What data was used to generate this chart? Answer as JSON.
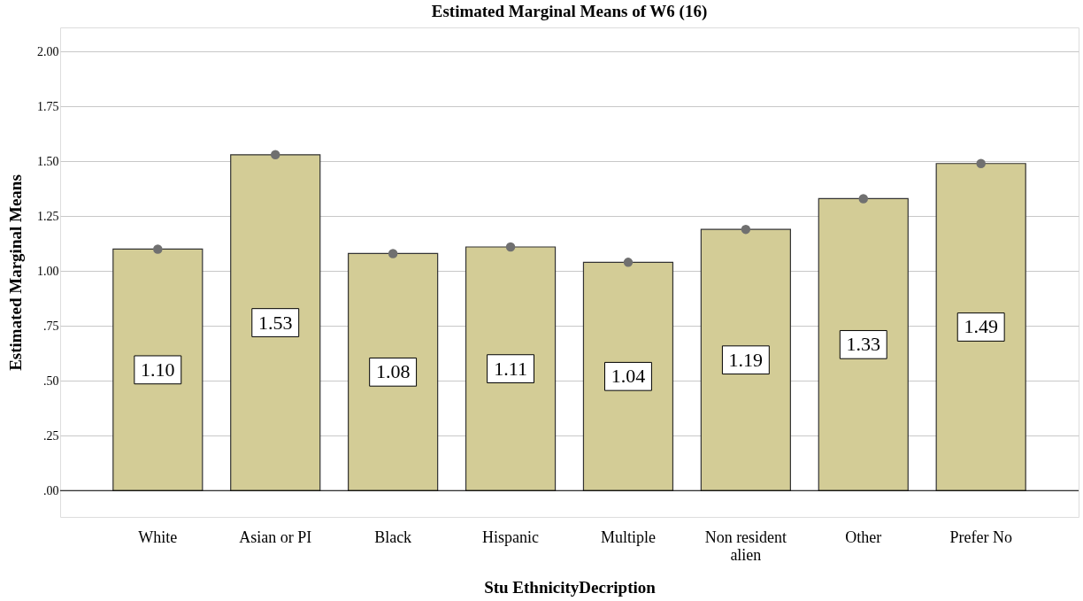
{
  "chart_data": {
    "type": "bar",
    "title": "Estimated Marginal Means of W6 (16)",
    "xlabel": "Stu EthnicityDecription",
    "ylabel": "Estimated Marginal Means",
    "categories": [
      "White",
      "Asian or PI",
      "Black",
      "Hispanic",
      "Multiple",
      "Non resident alien",
      "Other",
      "Prefer No"
    ],
    "series": [
      {
        "color": "#d3cc96",
        "values": [
          1.1,
          1.53,
          1.08,
          1.11,
          1.04,
          1.19,
          1.33,
          1.49
        ],
        "value_labels": [
          "1.10",
          "1.53",
          "1.08",
          "1.11",
          "1.04",
          "1.19",
          "1.33",
          "1.49"
        ]
      },
      {
        "type": "scatter",
        "color": "#707070",
        "values": [
          1.1,
          1.53,
          1.08,
          1.11,
          1.04,
          1.19,
          1.33,
          1.49
        ]
      }
    ],
    "ylim": [
      -0.12,
      2.11
    ],
    "yticks": [
      {
        "value": 0,
        "label": ".00"
      },
      {
        "value": 0.25,
        "label": ".25"
      },
      {
        "value": 0.5,
        "label": ".50"
      },
      {
        "value": 0.75,
        "label": ".75"
      },
      {
        "value": 1,
        "label": "1.00"
      },
      {
        "value": 1.25,
        "label": "1.25"
      },
      {
        "value": 1.5,
        "label": "1.50"
      },
      {
        "value": 1.75,
        "label": "1.75"
      },
      {
        "value": 2,
        "label": "2.00"
      }
    ],
    "ref_lines": [
      {
        "axis": "y",
        "value": 0,
        "color": "#000000"
      }
    ],
    "grid": "y",
    "marker": "circle"
  }
}
